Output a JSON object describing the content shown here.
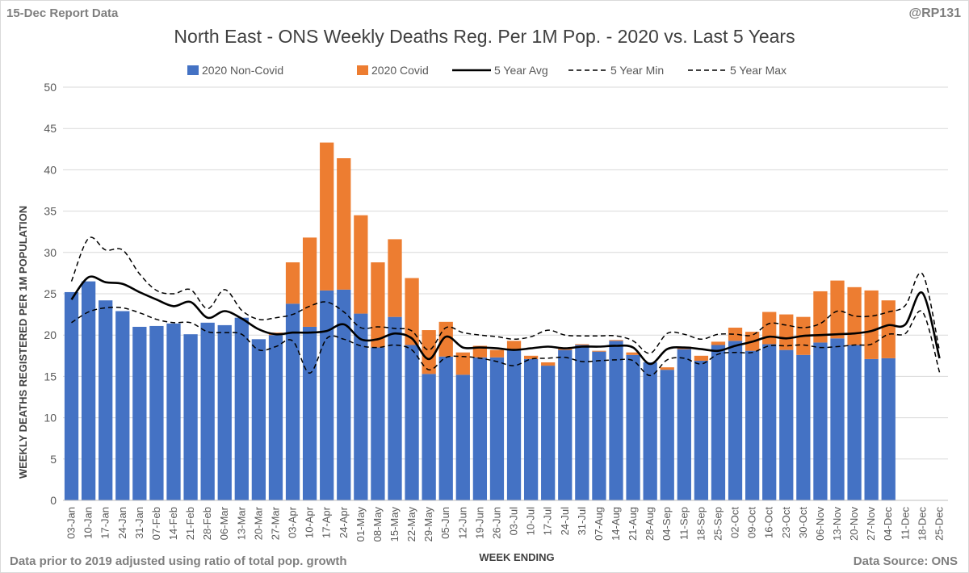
{
  "header": {
    "report_label": "15-Dec Report Data",
    "handle": "@RP131"
  },
  "footer": {
    "note": "Data prior to 2019 adjusted using ratio of total pop. growth",
    "source": "Data Source: ONS"
  },
  "colors": {
    "non_covid": "#4472c4",
    "covid": "#ed7d31",
    "avg": "#000000",
    "grid": "#d9d9d9",
    "text": "#595959"
  },
  "chart_data": {
    "type": "bar",
    "title": "North East - ONS Weekly Deaths Reg. Per 1M Pop. - 2020 vs. Last 5 Years",
    "xlabel": "WEEK ENDING",
    "ylabel": "WEEKLY DEATHS REGISTERED PER 1M POPULATION",
    "ylim": [
      0,
      50
    ],
    "ytick_step": 5,
    "grid": true,
    "legend_position": "top",
    "stacked": true,
    "categories": [
      "03-Jan",
      "10-Jan",
      "17-Jan",
      "24-Jan",
      "31-Jan",
      "07-Feb",
      "14-Feb",
      "21-Feb",
      "28-Feb",
      "06-Mar",
      "13-Mar",
      "20-Mar",
      "27-Mar",
      "03-Apr",
      "10-Apr",
      "17-Apr",
      "24-Apr",
      "01-May",
      "08-May",
      "15-May",
      "22-May",
      "29-May",
      "05-Jun",
      "12-Jun",
      "19-Jun",
      "26-Jun",
      "03-Jul",
      "10-Jul",
      "17-Jul",
      "24-Jul",
      "31-Jul",
      "07-Aug",
      "14-Aug",
      "21-Aug",
      "28-Aug",
      "04-Sep",
      "11-Sep",
      "18-Sep",
      "25-Sep",
      "02-Oct",
      "09-Oct",
      "16-Oct",
      "23-Oct",
      "30-Oct",
      "06-Nov",
      "13-Nov",
      "20-Nov",
      "27-Nov",
      "04-Dec",
      "11-Dec",
      "18-Dec",
      "25-Dec"
    ],
    "series": [
      {
        "name": "2020 Non-Covid",
        "kind": "bar",
        "values": [
          25.2,
          26.5,
          24.2,
          22.9,
          21.0,
          21.1,
          21.4,
          20.1,
          21.5,
          21.2,
          22.1,
          19.5,
          20.0,
          23.8,
          21.0,
          25.4,
          25.5,
          22.6,
          18.5,
          22.2,
          18.8,
          15.3,
          17.4,
          15.2,
          17.3,
          17.3,
          18.2,
          17.1,
          16.3,
          18.2,
          18.8,
          18.0,
          19.3,
          17.6,
          16.7,
          15.8,
          18.3,
          16.9,
          18.8,
          19.3,
          18.1,
          18.9,
          18.2,
          17.6,
          19.1,
          19.6,
          18.8,
          17.1,
          17.2,
          null,
          null,
          null
        ]
      },
      {
        "name": "2020 Covid",
        "kind": "bar",
        "values": [
          0,
          0,
          0,
          0,
          0,
          0,
          0,
          0,
          0,
          0,
          0,
          0,
          0.3,
          5.0,
          10.8,
          17.9,
          15.9,
          11.9,
          10.3,
          9.4,
          8.1,
          5.3,
          4.2,
          2.7,
          1.4,
          0.9,
          1.1,
          0.4,
          0.4,
          0.3,
          0.1,
          0.1,
          0.1,
          0.3,
          0,
          0.3,
          0.3,
          0.6,
          0.4,
          1.6,
          2.3,
          3.9,
          4.3,
          4.6,
          6.2,
          7.0,
          7.0,
          8.3,
          7.0,
          null,
          null,
          null
        ]
      },
      {
        "name": "5 Year Avg",
        "kind": "line",
        "values": [
          24.3,
          27.0,
          26.4,
          26.2,
          25.2,
          24.3,
          23.5,
          24.0,
          22.1,
          22.9,
          22.0,
          20.7,
          20.1,
          20.3,
          20.3,
          20.5,
          21.3,
          19.5,
          19.5,
          20.2,
          19.6,
          17.1,
          19.8,
          18.5,
          18.5,
          18.4,
          18.2,
          18.4,
          18.6,
          18.4,
          18.6,
          18.6,
          18.7,
          18.5,
          16.5,
          18.3,
          18.5,
          18.3,
          18.1,
          18.7,
          19.2,
          19.8,
          19.6,
          19.9,
          20.0,
          20.1,
          20.2,
          20.5,
          21.2,
          21.3,
          25.1,
          17.2
        ]
      },
      {
        "name": "5 Year Min",
        "kind": "dash",
        "values": [
          21.5,
          22.8,
          23.3,
          23.3,
          22.7,
          21.9,
          21.5,
          21.5,
          20.4,
          20.3,
          20.1,
          18.2,
          18.6,
          19.3,
          15.4,
          19.6,
          19.5,
          18.7,
          18.5,
          18.8,
          18.2,
          15.8,
          17.3,
          17.4,
          17.2,
          16.8,
          16.3,
          17.1,
          17.2,
          17.3,
          16.8,
          16.9,
          17.0,
          16.9,
          15.1,
          17.0,
          17.2,
          16.5,
          17.7,
          17.9,
          17.9,
          18.7,
          18.7,
          18.8,
          18.5,
          18.6,
          18.8,
          18.9,
          20.1,
          20.2,
          22.8,
          15.5
        ]
      },
      {
        "name": "5 Year Max",
        "kind": "dash",
        "values": [
          26.5,
          31.7,
          30.3,
          30.3,
          27.4,
          25.4,
          25.0,
          25.5,
          23.2,
          25.5,
          23.0,
          21.9,
          22.1,
          22.5,
          23.5,
          24.0,
          22.8,
          20.9,
          21.0,
          20.8,
          20.5,
          18.2,
          20.9,
          20.3,
          20.0,
          19.8,
          19.5,
          19.8,
          20.6,
          20.0,
          19.9,
          19.9,
          19.9,
          19.3,
          17.8,
          20.2,
          20.1,
          19.5,
          20.1,
          20.1,
          20.0,
          21.4,
          21.2,
          20.9,
          21.4,
          22.9,
          22.3,
          22.3,
          22.8,
          23.6,
          27.4,
          18.1
        ]
      }
    ]
  }
}
